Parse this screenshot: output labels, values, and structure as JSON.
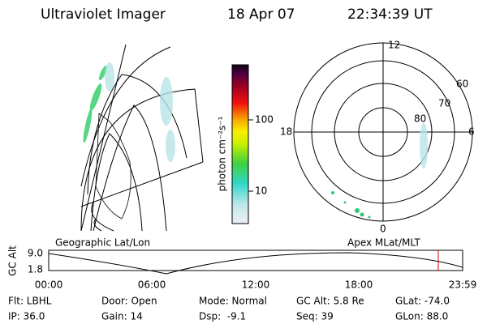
{
  "header": {
    "title": "Ultraviolet Imager",
    "date": "18 Apr 07",
    "time": "22:34:39 UT"
  },
  "left_panel": {
    "label": "Geographic Lat/Lon"
  },
  "colorbar": {
    "label": "photon cm⁻²s⁻¹",
    "ticks": [
      "100",
      "10"
    ]
  },
  "polar_panel": {
    "label": "Apex MLat/MLT",
    "mlt_labels": [
      "12",
      "18",
      "6",
      "0"
    ],
    "mlat_labels": [
      "60",
      "70",
      "80"
    ]
  },
  "timeline": {
    "ylabel": "GC Alt",
    "yticks": [
      "9.0",
      "1.8"
    ],
    "xticks": [
      "00:00",
      "06:00",
      "12:00",
      "18:00",
      "23:59"
    ]
  },
  "status": {
    "rows": [
      [
        "Flt: LBHL",
        "Door: Open",
        "Mode: Normal",
        "GC Alt: 5.8 Re",
        "GLat: -74.0"
      ],
      [
        "IP: 36.0",
        "Gain: 14",
        "Dsp:  -9.1",
        "Seq: 39",
        "GLon: 88.0"
      ]
    ]
  }
}
